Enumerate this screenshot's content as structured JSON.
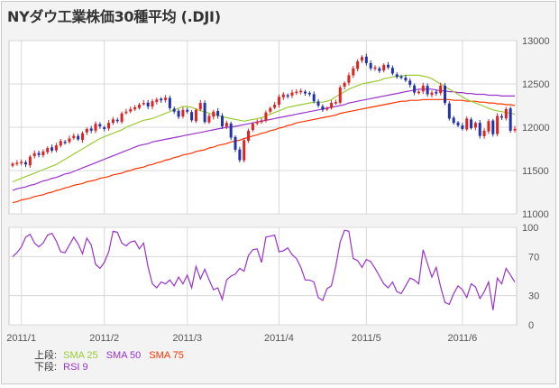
{
  "title": "NYダウ工業株価30種平均 (.DJI)",
  "legend": {
    "upper_label": "上段:",
    "lower_label": "下段:",
    "upper_items": [
      {
        "label": "SMA 25",
        "color": "#99cc33"
      },
      {
        "label": "SMA 50",
        "color": "#9933cc"
      },
      {
        "label": "SMA 75",
        "color": "#ff3300"
      }
    ],
    "lower_items": [
      {
        "label": "RSI 9",
        "color": "#9933cc"
      }
    ]
  },
  "colors": {
    "up_candle": "#dd2222",
    "down_candle": "#2233aa",
    "sma25": "#99cc33",
    "sma50": "#9933cc",
    "sma75": "#ff3300",
    "rsi": "#9933cc",
    "grid": "#d8d8d8"
  },
  "chart_data": [
    {
      "type": "candlestick",
      "ylim": [
        11000,
        13000
      ],
      "yticks": [
        "13000",
        "12500",
        "12000",
        "11500",
        "11000"
      ],
      "ytick_values": [
        13000,
        12500,
        12000,
        11500,
        11000
      ],
      "xticks": [
        "2011/1",
        "2011/2",
        "2011/3",
        "2011/4",
        "2011/5",
        "2011/6"
      ],
      "xtick_index": [
        2,
        21,
        40,
        61,
        81,
        103
      ],
      "grid": true,
      "close": [
        11580,
        11590,
        11600,
        11570,
        11660,
        11700,
        11680,
        11720,
        11760,
        11730,
        11790,
        11840,
        11820,
        11870,
        11900,
        11860,
        11930,
        11980,
        11960,
        12040,
        12010,
        11980,
        12050,
        12090,
        12070,
        12160,
        12180,
        12210,
        12230,
        12260,
        12280,
        12240,
        12300,
        12320,
        12310,
        12340,
        12220,
        12180,
        12120,
        12200,
        12180,
        12080,
        12200,
        12280,
        12060,
        12130,
        12180,
        12130,
        12010,
        12050,
        11880,
        11740,
        11620,
        11850,
        11960,
        12040,
        12060,
        12080,
        12170,
        12220,
        12260,
        12350,
        12380,
        12360,
        12400,
        12410,
        12420,
        12390,
        12380,
        12300,
        12250,
        12200,
        12220,
        12280,
        12290,
        12460,
        12510,
        12600,
        12680,
        12760,
        12810,
        12740,
        12680,
        12690,
        12650,
        12720,
        12690,
        12620,
        12580,
        12570,
        12540,
        12490,
        12400,
        12410,
        12480,
        12380,
        12400,
        12390,
        12480,
        12280,
        12100,
        12050,
        12020,
        11980,
        12100,
        11990,
        12050,
        11900,
        11960,
        12070,
        11920,
        12130,
        12110,
        12210,
        11960,
        11980
      ],
      "sma25": [
        11370,
        11390,
        11410,
        11430,
        11450,
        11470,
        11490,
        11510,
        11530,
        11550,
        11570,
        11600,
        11630,
        11660,
        11690,
        11720,
        11750,
        11780,
        11810,
        11840,
        11870,
        11890,
        11910,
        11930,
        11950,
        11970,
        12000,
        12020,
        12040,
        12060,
        12080,
        12090,
        12100,
        12120,
        12140,
        12160,
        12180,
        12200,
        12220,
        12240,
        12240,
        12230,
        12210,
        12190,
        12180,
        12160,
        12150,
        12140,
        12120,
        12110,
        12100,
        12090,
        12080,
        12070,
        12080,
        12090,
        12100,
        12110,
        12130,
        12150,
        12170,
        12190,
        12210,
        12230,
        12240,
        12250,
        12260,
        12270,
        12280,
        12290,
        12290,
        12290,
        12300,
        12320,
        12350,
        12380,
        12410,
        12440,
        12460,
        12480,
        12500,
        12510,
        12520,
        12530,
        12540,
        12560,
        12570,
        12580,
        12590,
        12590,
        12600,
        12600,
        12600,
        12600,
        12590,
        12580,
        12560,
        12530,
        12500,
        12470,
        12440,
        12410,
        12380,
        12350,
        12320,
        12300,
        12280,
        12260,
        12240,
        12220,
        12200,
        12190,
        12180,
        12170,
        12160,
        12150
      ],
      "sma50": [
        11270,
        11290,
        11300,
        11310,
        11330,
        11340,
        11360,
        11380,
        11390,
        11410,
        11420,
        11440,
        11460,
        11470,
        11490,
        11510,
        11530,
        11550,
        11570,
        11590,
        11610,
        11630,
        11650,
        11670,
        11690,
        11710,
        11730,
        11750,
        11770,
        11790,
        11800,
        11810,
        11830,
        11840,
        11850,
        11860,
        11870,
        11880,
        11890,
        11900,
        11910,
        11920,
        11930,
        11940,
        11950,
        11960,
        11970,
        11980,
        11990,
        12000,
        12000,
        12010,
        12020,
        12030,
        12040,
        12050,
        12060,
        12070,
        12080,
        12090,
        12100,
        12110,
        12120,
        12130,
        12140,
        12150,
        12160,
        12170,
        12180,
        12190,
        12200,
        12210,
        12220,
        12230,
        12240,
        12250,
        12260,
        12280,
        12290,
        12300,
        12310,
        12320,
        12330,
        12340,
        12350,
        12360,
        12370,
        12380,
        12390,
        12400,
        12410,
        12420,
        12430,
        12440,
        12440,
        12440,
        12440,
        12430,
        12420,
        12420,
        12410,
        12410,
        12400,
        12400,
        12390,
        12390,
        12380,
        12380,
        12380,
        12370,
        12370,
        12370,
        12360,
        12360,
        12360,
        12360
      ],
      "sma75": [
        11130,
        11140,
        11160,
        11170,
        11180,
        11200,
        11210,
        11220,
        11240,
        11250,
        11270,
        11280,
        11300,
        11310,
        11330,
        11340,
        11350,
        11370,
        11380,
        11390,
        11410,
        11420,
        11430,
        11450,
        11460,
        11470,
        11490,
        11500,
        11520,
        11530,
        11540,
        11560,
        11570,
        11590,
        11600,
        11620,
        11630,
        11650,
        11660,
        11680,
        11690,
        11700,
        11720,
        11730,
        11740,
        11760,
        11770,
        11790,
        11800,
        11810,
        11830,
        11840,
        11850,
        11870,
        11880,
        11900,
        11910,
        11930,
        11940,
        11960,
        11970,
        11990,
        12000,
        12020,
        12030,
        12050,
        12060,
        12070,
        12080,
        12090,
        12100,
        12110,
        12120,
        12130,
        12140,
        12160,
        12170,
        12180,
        12190,
        12200,
        12210,
        12220,
        12230,
        12240,
        12250,
        12260,
        12270,
        12280,
        12290,
        12300,
        12300,
        12310,
        12310,
        12310,
        12320,
        12320,
        12320,
        12320,
        12320,
        12320,
        12320,
        12310,
        12310,
        12310,
        12300,
        12300,
        12300,
        12290,
        12290,
        12280,
        12280,
        12270,
        12270,
        12260,
        12260,
        12250
      ]
    },
    {
      "type": "line",
      "series": [
        {
          "name": "RSI 9",
          "values": [
            70,
            74,
            80,
            90,
            93,
            84,
            80,
            84,
            92,
            94,
            86,
            75,
            74,
            82,
            90,
            83,
            73,
            89,
            82,
            62,
            58,
            64,
            75,
            96,
            95,
            84,
            81,
            85,
            86,
            78,
            84,
            60,
            42,
            38,
            44,
            42,
            46,
            40,
            49,
            42,
            51,
            38,
            60,
            47,
            57,
            46,
            36,
            38,
            26,
            46,
            50,
            52,
            58,
            55,
            71,
            77,
            78,
            64,
            90,
            91,
            92,
            75,
            76,
            79,
            72,
            68,
            59,
            46,
            46,
            44,
            28,
            25,
            37,
            40,
            60,
            85,
            97,
            96,
            68,
            66,
            59,
            67,
            65,
            58,
            50,
            42,
            38,
            44,
            34,
            32,
            40,
            48,
            46,
            42,
            77,
            63,
            49,
            59,
            39,
            23,
            21,
            32,
            40,
            36,
            28,
            42,
            39,
            27,
            34,
            44,
            15,
            48,
            42,
            58,
            51,
            44
          ]
        }
      ],
      "ylim": [
        0,
        100
      ],
      "yticks": [
        "100",
        "70",
        "30",
        "0"
      ],
      "ytick_values": [
        100,
        70,
        30,
        0
      ]
    }
  ]
}
